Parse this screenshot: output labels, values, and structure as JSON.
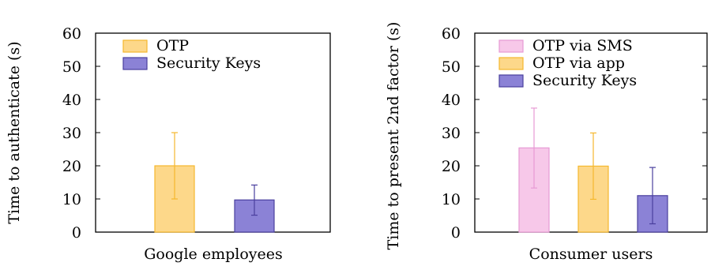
{
  "chart_data": [
    {
      "type": "bar",
      "xlabel": "Google employees",
      "ylabel": "Time to authenticate (s)",
      "ylim": [
        0,
        60
      ],
      "yticks": [
        0,
        10,
        20,
        30,
        40,
        50,
        60
      ],
      "legend_position": "top-left",
      "grid": false,
      "series": [
        {
          "name": "OTP",
          "value": 20,
          "error_low": 10,
          "error_high": 30,
          "color": "#fdd88a",
          "edge": "#f5b82e"
        },
        {
          "name": "Security Keys",
          "value": 9.7,
          "error_low": 5.1,
          "error_high": 14.2,
          "color": "#8b82d6",
          "edge": "#4a3f9e"
        }
      ]
    },
    {
      "type": "bar",
      "xlabel": "Consumer users",
      "ylabel": "Time to present 2nd factor (s)",
      "ylim": [
        0,
        60
      ],
      "yticks": [
        0,
        10,
        20,
        30,
        40,
        50,
        60
      ],
      "legend_position": "top-left",
      "grid": false,
      "series": [
        {
          "name": "OTP via SMS",
          "value": 25.4,
          "error_low": 13.3,
          "error_high": 37.4,
          "color": "#f7c8e9",
          "edge": "#e79ad4"
        },
        {
          "name": "OTP via app",
          "value": 19.9,
          "error_low": 9.9,
          "error_high": 29.9,
          "color": "#fdd88a",
          "edge": "#f5b82e"
        },
        {
          "name": "Security Keys",
          "value": 11,
          "error_low": 2.5,
          "error_high": 19.5,
          "color": "#8b82d6",
          "edge": "#4a3f9e"
        }
      ]
    }
  ]
}
